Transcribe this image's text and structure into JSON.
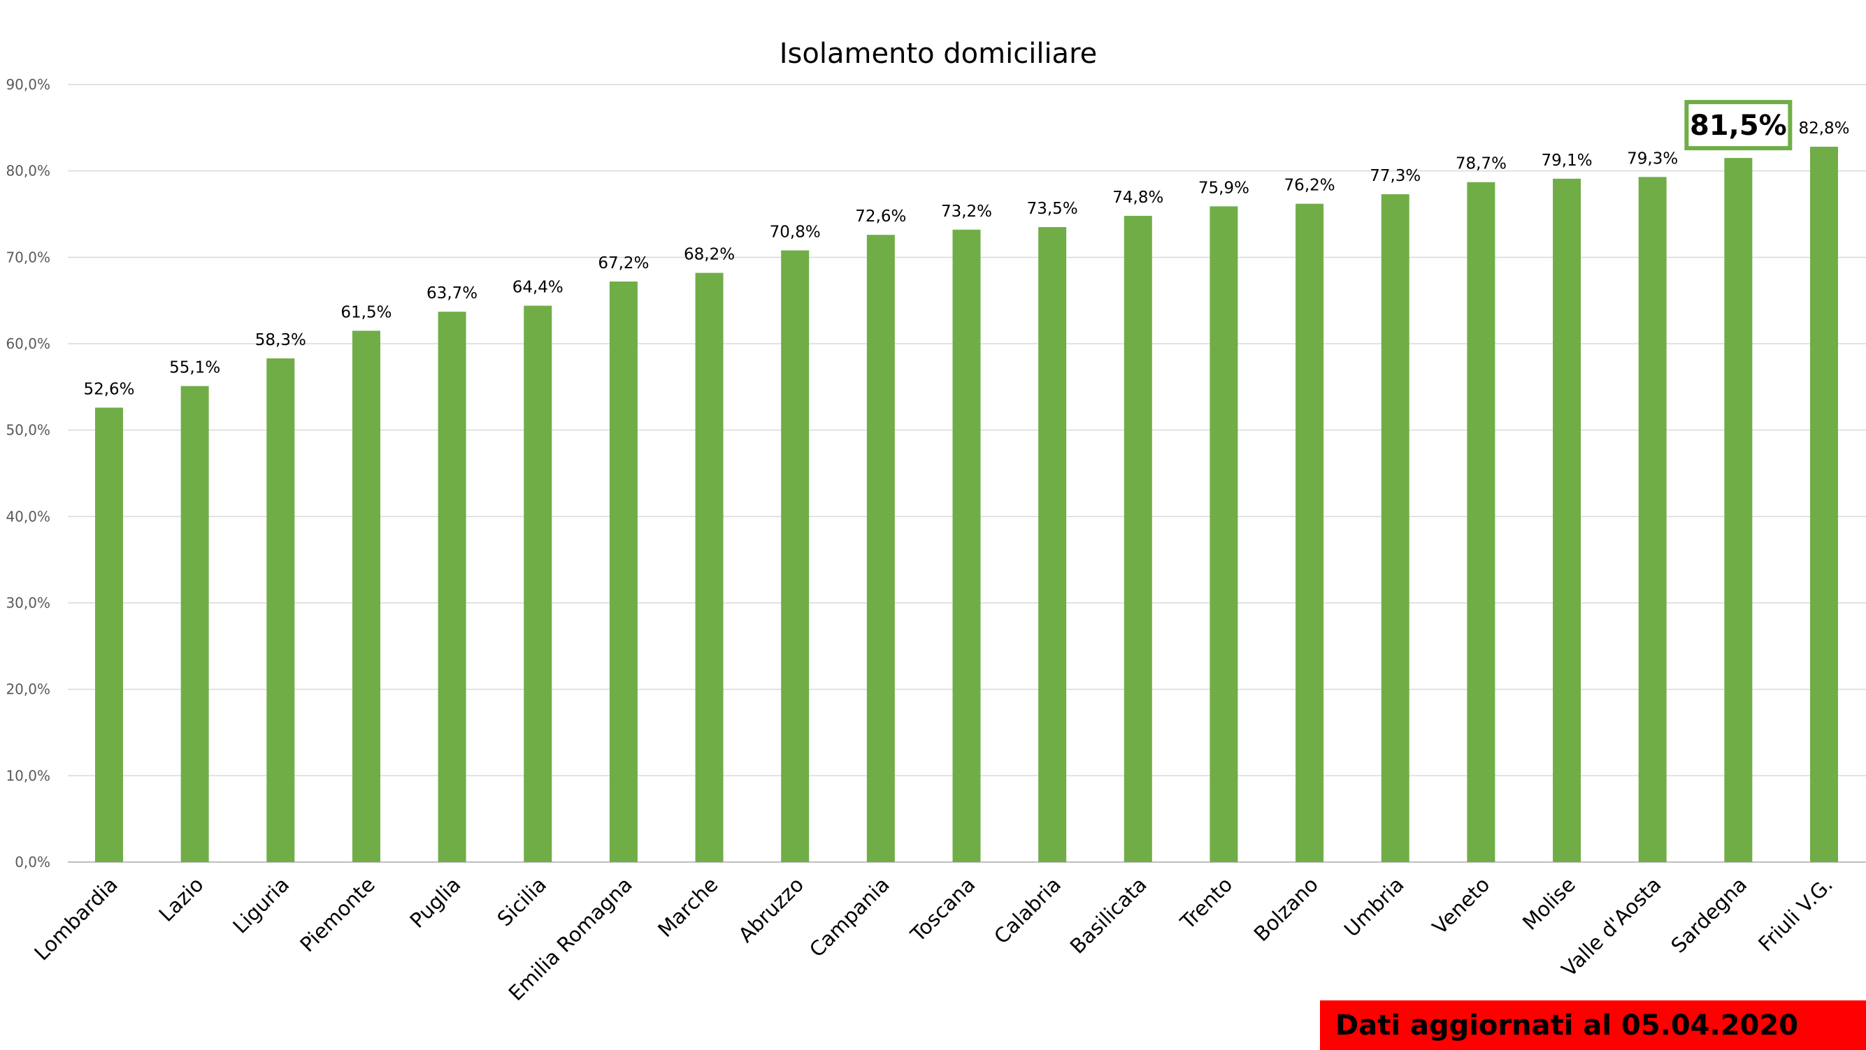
{
  "chart_data": {
    "type": "bar",
    "title": "Isolamento domiciliare",
    "xlabel": "",
    "ylabel": "",
    "ylim": [
      0,
      90
    ],
    "yticks": [
      "0,0%",
      "10,0%",
      "20,0%",
      "30,0%",
      "40,0%",
      "50,0%",
      "60,0%",
      "70,0%",
      "80,0%",
      "90,0%"
    ],
    "grid": true,
    "legend": "none",
    "bar_color": "#70ad47",
    "highlight_color": "#70ad47",
    "categories": [
      "Lombardia",
      "Lazio",
      "Liguria",
      "Piemonte",
      "Puglia",
      "Sicilia",
      "Emilia Romagna",
      "Marche",
      "Abruzzo",
      "Campania",
      "Toscana",
      "Calabria",
      "Basilicata",
      "Trento",
      "Bolzano",
      "Umbria",
      "Veneto",
      "Molise",
      "Valle d'Aosta",
      "Sardegna",
      "Friuli V.G."
    ],
    "values": [
      52.6,
      55.1,
      58.3,
      61.5,
      63.7,
      64.4,
      67.2,
      68.2,
      70.8,
      72.6,
      73.2,
      73.5,
      74.8,
      75.9,
      76.2,
      77.3,
      78.7,
      79.1,
      79.3,
      81.5,
      82.8
    ],
    "data_labels": [
      "52,6%",
      "55,1%",
      "58,3%",
      "61,5%",
      "63,7%",
      "64,4%",
      "67,2%",
      "68,2%",
      "70,8%",
      "72,6%",
      "73,2%",
      "73,5%",
      "74,8%",
      "75,9%",
      "76,2%",
      "77,3%",
      "78,7%",
      "79,1%",
      "79,3%",
      "81,5%",
      "82,8%"
    ],
    "highlighted_category": "Sardegna"
  },
  "note": {
    "text": "Dati aggiornati al 05.04.2020",
    "background": "#ff0000"
  }
}
